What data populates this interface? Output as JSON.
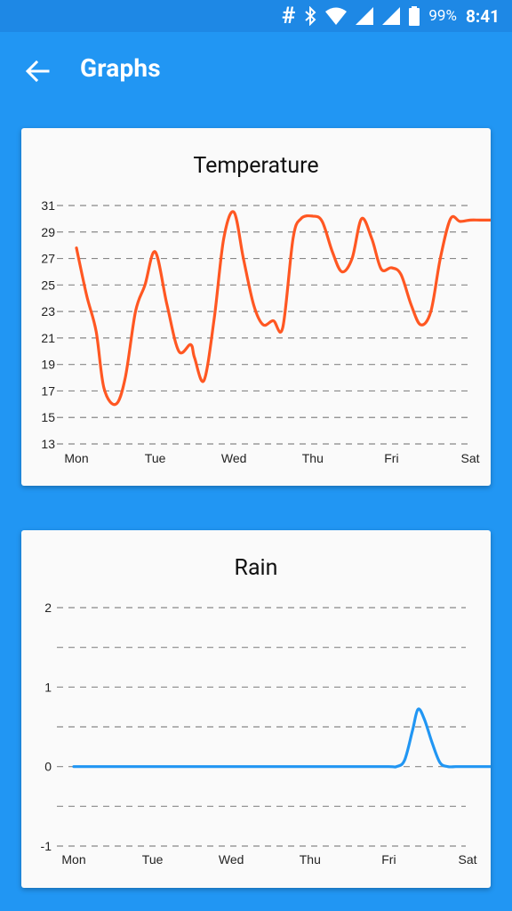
{
  "status_bar": {
    "battery_percent": "99%",
    "time": "8:41",
    "icons": [
      "hash-icon",
      "bluetooth-icon",
      "wifi-icon",
      "signal-icon",
      "signal-icon",
      "battery-icon"
    ]
  },
  "app_bar": {
    "title": "Graphs",
    "back_icon": "arrow-left-icon"
  },
  "colors": {
    "primary": "#2196F3",
    "primary_dark": "#1E88E5",
    "temperature_line": "#FF5722",
    "rain_line": "#2196F3",
    "gridline": "#888888",
    "card_bg": "#FAFAFA"
  },
  "chart_data": [
    {
      "type": "line",
      "title": "Temperature",
      "x_ticks": [
        "Mon",
        "Tue",
        "Wed",
        "Thu",
        "Fri",
        "Sat"
      ],
      "y_ticks": [
        13,
        15,
        17,
        19,
        21,
        23,
        25,
        27,
        29,
        31
      ],
      "ylim": [
        13,
        31
      ],
      "grid": "dashed horizontal",
      "series": [
        {
          "color": "#FF5722",
          "x": [
            0,
            0.13,
            0.25,
            0.35,
            0.5,
            0.62,
            0.75,
            0.87,
            1.0,
            1.15,
            1.3,
            1.45,
            1.5,
            1.62,
            1.75,
            1.87,
            2.0,
            2.12,
            2.25,
            2.37,
            2.5,
            2.62,
            2.75,
            2.85,
            3.0,
            3.12,
            3.25,
            3.37,
            3.5,
            3.62,
            3.75,
            3.87,
            4.0,
            4.12,
            4.25,
            4.37,
            4.5,
            4.62,
            4.75,
            4.87,
            5.0,
            5.12,
            5.25,
            5.37
          ],
          "y": [
            27.8,
            24.2,
            21.5,
            17.2,
            16.0,
            18.0,
            23.0,
            25.0,
            27.5,
            23.5,
            20.0,
            20.5,
            19.5,
            17.8,
            22.5,
            28.5,
            30.5,
            27.0,
            23.5,
            22.0,
            22.3,
            21.8,
            28.5,
            30.0,
            30.2,
            29.8,
            27.5,
            26.0,
            27.0,
            30.0,
            28.5,
            26.2,
            26.3,
            25.8,
            23.5,
            22.0,
            23.0,
            27.0,
            30.0,
            29.8,
            29.9,
            29.9,
            29.9,
            29.9
          ]
        }
      ]
    },
    {
      "type": "line",
      "title": "Rain",
      "x_ticks": [
        "Mon",
        "Tue",
        "Wed",
        "Thu",
        "Fri",
        "Sat"
      ],
      "y_ticks": [
        -1,
        0,
        1,
        2
      ],
      "ylim": [
        -1,
        2
      ],
      "grid": "dashed horizontal",
      "series": [
        {
          "color": "#2196F3",
          "x": [
            0,
            0.5,
            1.0,
            1.5,
            2.0,
            2.5,
            3.0,
            3.5,
            4.0,
            4.1,
            4.2,
            4.3,
            4.37,
            4.45,
            4.55,
            4.65,
            4.75,
            4.85,
            5.0,
            5.2,
            5.37
          ],
          "y": [
            0,
            0,
            0,
            0,
            0,
            0,
            0,
            0,
            0,
            0,
            0.08,
            0.45,
            0.72,
            0.6,
            0.3,
            0.05,
            0,
            0,
            0,
            0,
            0
          ]
        }
      ]
    }
  ]
}
